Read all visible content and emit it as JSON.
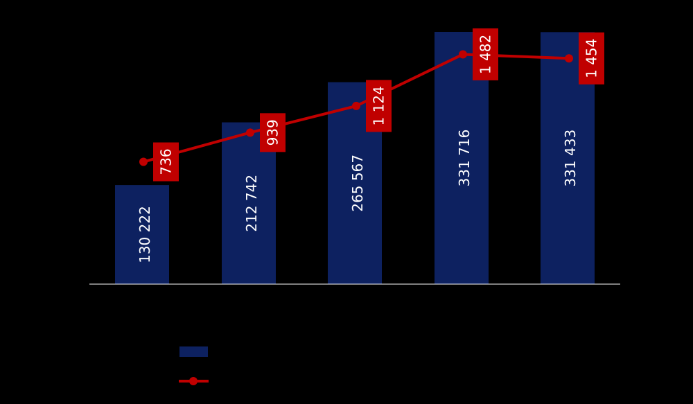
{
  "chart_data": {
    "type": "bar",
    "categories": [
      "",
      "",
      "",
      "",
      ""
    ],
    "series": [
      {
        "type": "bar",
        "values": [
          130222,
          212742,
          265567,
          331716,
          331433
        ],
        "labels": [
          "130 222",
          "212 742",
          "265 567",
          "331 716",
          "331 433"
        ],
        "color": "#0d2160"
      },
      {
        "type": "line",
        "values": [
          736,
          939,
          1124,
          1482,
          1454
        ],
        "labels": [
          "736",
          "939",
          "1 124",
          "1 482",
          "1 454"
        ],
        "color": "#c00000"
      }
    ],
    "title": "",
    "xlabel": "",
    "ylabel": "",
    "ylim_bar": [
      0,
      400000
    ],
    "ylim_line": [
      0,
      2000
    ],
    "grid": false,
    "legend": {
      "placement": "bottom",
      "entries": [
        "",
        ""
      ]
    },
    "colors": {
      "background": "#000000",
      "bar": "#0d2160",
      "line": "#c00000",
      "axis": "#ffffff",
      "label_text": "#ffffff"
    }
  }
}
